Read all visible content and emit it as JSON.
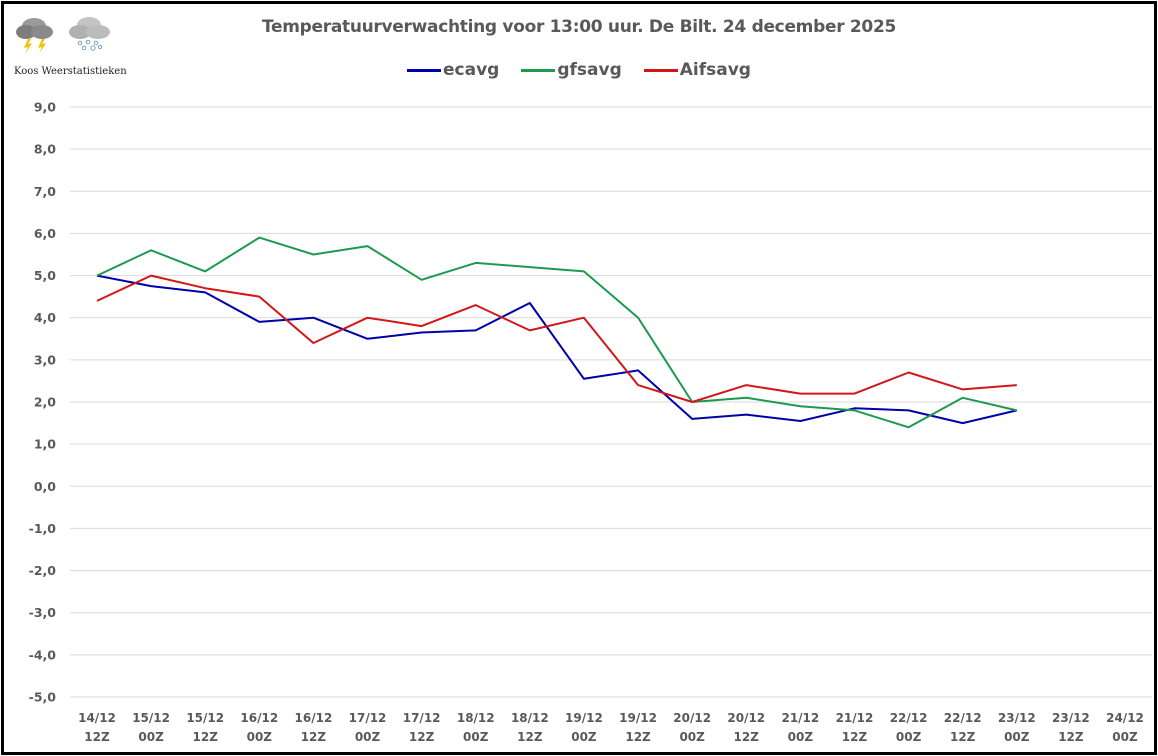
{
  "branding": {
    "logo_text": "Koos Weerstatistieken",
    "icons": [
      "thunderstorm-cloud-icon",
      "snow-cloud-icon"
    ]
  },
  "chart_data": {
    "type": "line",
    "title": "Temperatuurverwachting voor 13:00 uur. De Bilt. 24 december 2025",
    "xlabel": "",
    "ylabel": "",
    "ylim": [
      -5,
      9
    ],
    "yticks": [
      "9,0",
      "8,0",
      "7,0",
      "6,0",
      "5,0",
      "4,0",
      "3,0",
      "2,0",
      "1,0",
      "0,0",
      "-1,0",
      "-2,0",
      "-3,0",
      "-4,0",
      "-5,0"
    ],
    "ytick_values": [
      9,
      8,
      7,
      6,
      5,
      4,
      3,
      2,
      1,
      0,
      -1,
      -2,
      -3,
      -4,
      -5
    ],
    "grid": true,
    "legend_position": "top-center",
    "categories": [
      [
        "14/12",
        "12Z"
      ],
      [
        "15/12",
        "00Z"
      ],
      [
        "15/12",
        "12Z"
      ],
      [
        "16/12",
        "00Z"
      ],
      [
        "16/12",
        "12Z"
      ],
      [
        "17/12",
        "00Z"
      ],
      [
        "17/12",
        "12Z"
      ],
      [
        "18/12",
        "00Z"
      ],
      [
        "18/12",
        "12Z"
      ],
      [
        "19/12",
        "00Z"
      ],
      [
        "19/12",
        "12Z"
      ],
      [
        "20/12",
        "00Z"
      ],
      [
        "20/12",
        "12Z"
      ],
      [
        "21/12",
        "00Z"
      ],
      [
        "21/12",
        "12Z"
      ],
      [
        "22/12",
        "00Z"
      ],
      [
        "22/12",
        "12Z"
      ],
      [
        "23/12",
        "00Z"
      ],
      [
        "23/12",
        "12Z"
      ],
      [
        "24/12",
        "00Z"
      ]
    ],
    "series": [
      {
        "name": "ecavg",
        "color": "#0000a8",
        "values": [
          5.0,
          4.75,
          4.6,
          3.9,
          4.0,
          3.5,
          3.65,
          3.7,
          4.35,
          2.55,
          2.75,
          1.6,
          1.7,
          1.55,
          1.85,
          1.8,
          1.5,
          1.8,
          null,
          null
        ]
      },
      {
        "name": "gfsavg",
        "color": "#1e9a50",
        "values": [
          5.0,
          5.6,
          5.1,
          5.9,
          5.5,
          5.7,
          4.9,
          5.3,
          5.2,
          5.1,
          4.0,
          2.0,
          2.1,
          1.9,
          1.8,
          1.4,
          2.1,
          1.8,
          null,
          null
        ]
      },
      {
        "name": "Aifsavg",
        "color": "#d01818",
        "values": [
          4.4,
          5.0,
          4.7,
          4.5,
          3.4,
          4.0,
          3.8,
          4.3,
          3.7,
          4.0,
          2.4,
          2.0,
          2.4,
          2.2,
          2.2,
          2.7,
          2.3,
          2.4,
          null,
          null
        ]
      }
    ]
  }
}
